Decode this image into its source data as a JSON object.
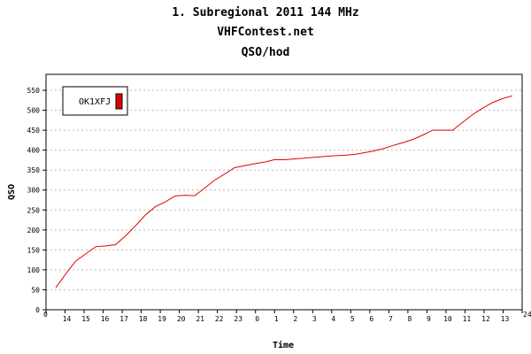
{
  "header": {
    "title": "1. Subregional 2011 144 MHz",
    "site": "VHFContest.net",
    "metric": "QSO/hod"
  },
  "chart_data": {
    "type": "line",
    "xlabel": "Time",
    "ylabel": "QSO",
    "x_tick_labels": [
      "0",
      "14",
      "15",
      "16",
      "17",
      "18",
      "19",
      "20",
      "21",
      "22",
      "23",
      "0",
      "1",
      "2",
      "3",
      "4",
      "5",
      "6",
      "7",
      "8",
      "9",
      "10",
      "11",
      "12",
      "13",
      "24"
    ],
    "y_ticks": [
      0,
      50,
      100,
      150,
      200,
      250,
      300,
      350,
      400,
      450,
      500,
      550
    ],
    "ylim": [
      0,
      590
    ],
    "xlim": [
      0,
      24
    ],
    "grid": true,
    "legend_position": "top-left",
    "series": [
      {
        "name": "OK1XFJ",
        "color": "#e00000",
        "x": [
          0.5,
          1,
          1.5,
          2,
          2.5,
          3,
          3.5,
          4,
          4.5,
          5,
          5.5,
          6,
          6.5,
          7,
          7.5,
          8,
          8.5,
          9,
          9.5,
          10,
          10.5,
          11,
          11.5,
          12,
          12.5,
          13,
          13.5,
          14,
          14.5,
          15,
          15.5,
          16,
          16.5,
          17,
          17.5,
          18,
          18.5,
          19,
          19.5,
          20,
          20.5,
          21,
          21.5,
          22,
          22.5,
          23,
          23.5
        ],
        "y": [
          56,
          90,
          122,
          140,
          158,
          160,
          163,
          185,
          210,
          237,
          258,
          270,
          285,
          287,
          286,
          305,
          325,
          340,
          356,
          361,
          366,
          370,
          376,
          376,
          378,
          380,
          382,
          384,
          386,
          387,
          389,
          393,
          398,
          404,
          412,
          419,
          427,
          438,
          450,
          450,
          450,
          470,
          489,
          505,
          519,
          529,
          536
        ]
      }
    ]
  }
}
